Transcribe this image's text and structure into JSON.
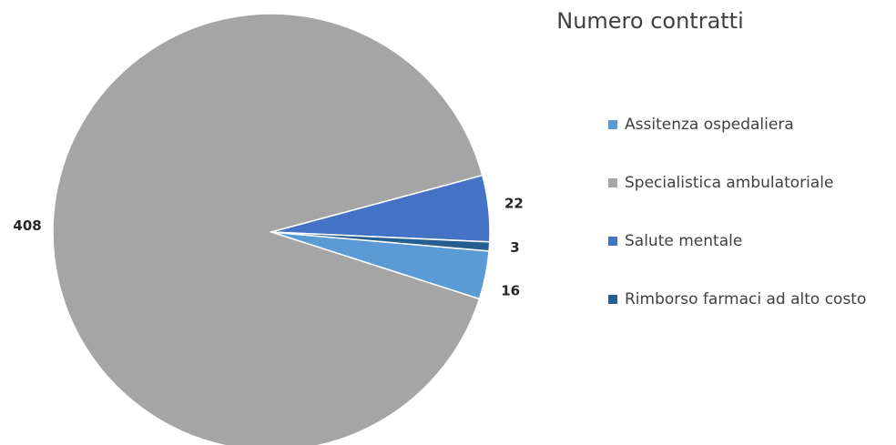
{
  "chart_data": {
    "type": "pie",
    "title": "Numero contratti",
    "categories": [
      "Assitenza ospedaliera",
      "Specialistica ambulatoriale",
      "Salute mentale",
      "Rimborso farmaci ad alto costo"
    ],
    "values": [
      16,
      408,
      22,
      3
    ],
    "colors": [
      "#5b9bd5",
      "#a5a5a5",
      "#4472c4",
      "#255e91"
    ],
    "legend": "right"
  }
}
